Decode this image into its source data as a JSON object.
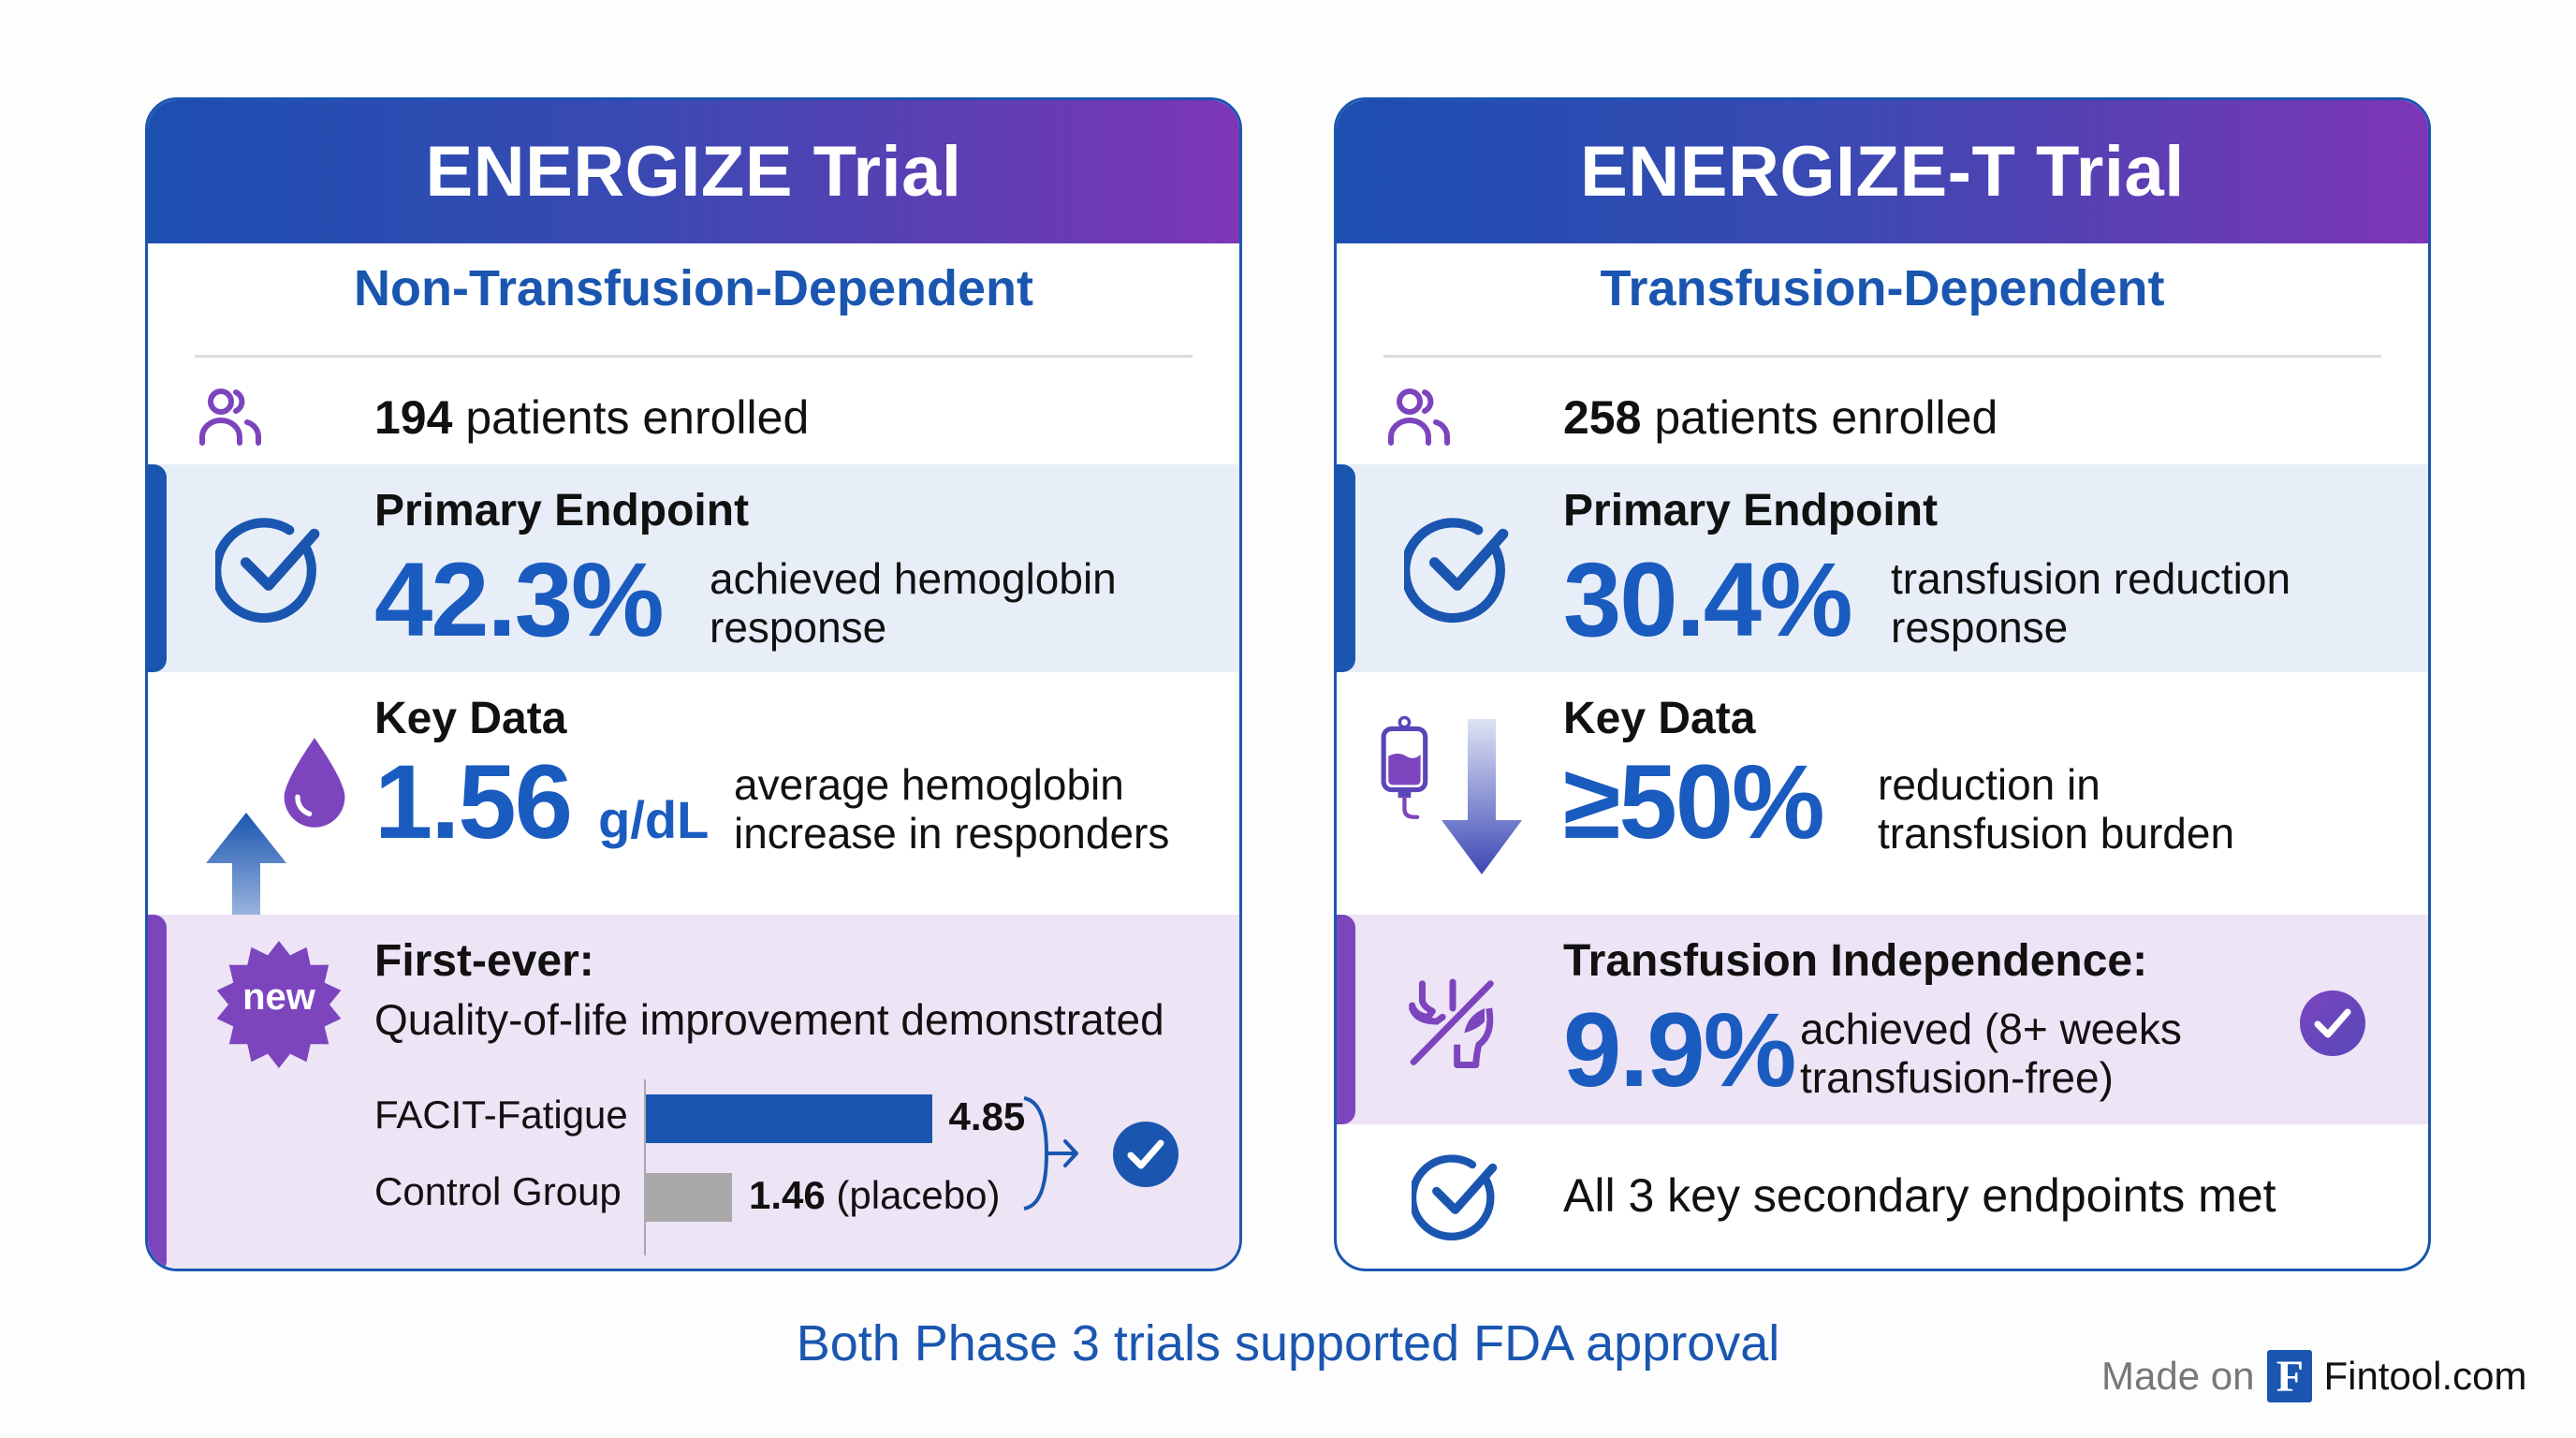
{
  "colors": {
    "primary_blue": "#1a56b0",
    "accent_purple": "#7c45be",
    "header_gradient_start": "#1c4fb0",
    "header_gradient_end": "#7d36b6",
    "primary_band_bg": "#e8eef8",
    "purple_band_bg": "#ede4f6",
    "placebo_gray": "#a8a8a8"
  },
  "trials": [
    {
      "title": "ENERGIZE Trial",
      "population": "Non-Transfusion-Dependent",
      "enrolled_count": "194",
      "enrolled_label": "patients enrolled",
      "primary": {
        "label": "Primary Endpoint",
        "value": "42.3%",
        "desc_line1": "achieved hemoglobin",
        "desc_line2": "response",
        "icon": "check-circle-icon"
      },
      "key_data": {
        "label": "Key Data",
        "value": "1.56",
        "unit": "g/dL",
        "desc_line1": "average hemoglobin",
        "desc_line2": "increase in responders",
        "icons": [
          "arrow-up-icon",
          "blood-drop-icon"
        ]
      },
      "highlight": {
        "badge": "new",
        "label": "First-ever:",
        "desc": "Quality-of-life improvement demonstrated",
        "comparison": [
          {
            "name": "FACIT-Fatigue",
            "value": 4.85,
            "value_label": "4.85",
            "suffix": ""
          },
          {
            "name": "Control Group",
            "value": 1.46,
            "value_label": "1.46",
            "suffix": " (placebo)"
          }
        ]
      }
    },
    {
      "title": "ENERGIZE-T Trial",
      "population": "Transfusion-Dependent",
      "enrolled_count": "258",
      "enrolled_label": "patients enrolled",
      "primary": {
        "label": "Primary Endpoint",
        "value": "30.4%",
        "desc_line1": "transfusion reduction",
        "desc_line2": "response",
        "icon": "check-circle-icon"
      },
      "key_data": {
        "label": "Key Data",
        "value": "≥50%",
        "desc_line1": "reduction in",
        "desc_line2": "transfusion burden",
        "icons": [
          "blood-bag-icon",
          "arrow-down-icon"
        ]
      },
      "highlight": {
        "label": "Transfusion Independence:",
        "value": "9.9%",
        "desc_line1": "achieved (8+ weeks",
        "desc_line2": "transfusion-free)",
        "icon": "no-transfusion-icon"
      },
      "secondary": {
        "text": "All 3 key secondary endpoints met",
        "icon": "check-circle-icon"
      }
    }
  ],
  "footer": {
    "caption": "Both Phase 3 trials supported FDA approval",
    "made_on": "Made on",
    "logo_letter": "F",
    "brand": "Fintool.com"
  }
}
